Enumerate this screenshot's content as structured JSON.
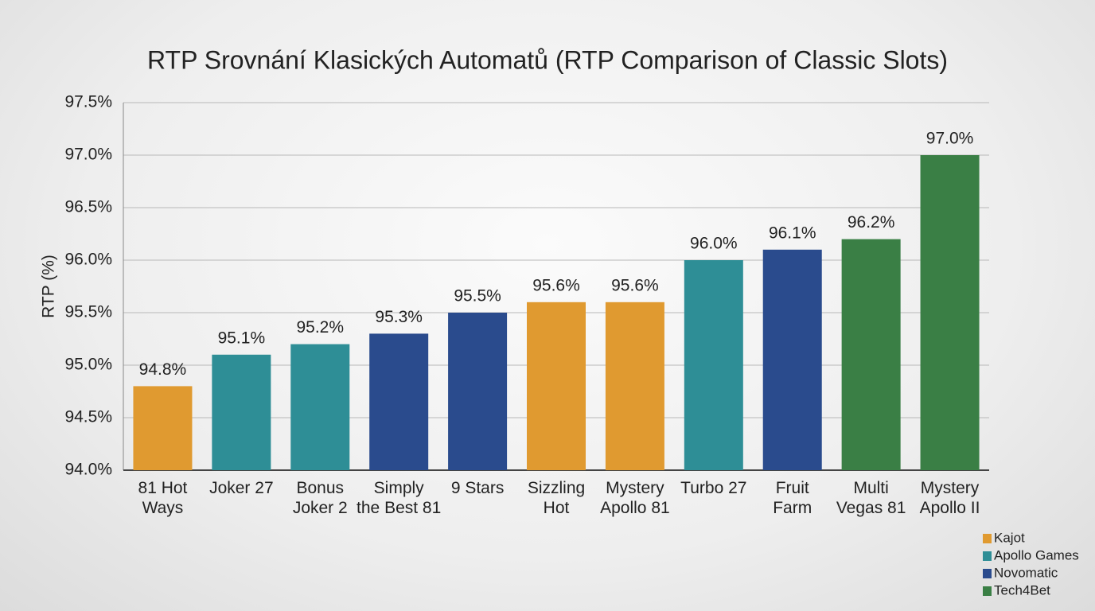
{
  "chart_data": {
    "type": "bar",
    "title": "RTP Srovnání Klasických Automatů (RTP Comparison of Classic Slots)",
    "y_label": "RTP (%)",
    "categories": [
      "81 Hot\nWays",
      "Joker 27",
      "Bonus\nJoker 2",
      "Simply\nthe Best 81",
      "9 Stars",
      "Sizzling\nHot",
      "Mystery\nApollo 81",
      "Turbo 27",
      "Fruit\nFarm",
      "Multi\nVegas 81",
      "Mystery\nApollo II"
    ],
    "series": [
      {
        "name": "Kajot",
        "color": "#e09a30",
        "values": [
          94.8,
          null,
          null,
          null,
          null,
          95.6,
          95.6,
          null,
          null,
          null,
          null
        ],
        "value_labels": [
          "94.8%",
          null,
          null,
          null,
          null,
          "95.6%",
          "95.6%",
          null,
          null,
          null,
          null
        ]
      },
      {
        "name": "Apollo Games",
        "color": "#2e8e96",
        "values": [
          null,
          95.1,
          95.2,
          null,
          null,
          null,
          null,
          96.0,
          null,
          null,
          null
        ],
        "value_labels": [
          null,
          "95.1%",
          "95.2%",
          null,
          null,
          null,
          null,
          "96.0%",
          null,
          null,
          null
        ]
      },
      {
        "name": "Novomatic",
        "color": "#2a4b8d",
        "values": [
          null,
          null,
          null,
          95.3,
          95.5,
          null,
          null,
          null,
          96.1,
          null,
          null
        ],
        "value_labels": [
          null,
          null,
          null,
          "95.3%",
          "95.5%",
          null,
          null,
          null,
          "96.1%",
          null,
          null
        ]
      },
      {
        "name": "Tech4Bet",
        "color": "#3a7f45",
        "values": [
          null,
          null,
          null,
          null,
          null,
          null,
          null,
          null,
          null,
          96.2,
          97.0
        ],
        "value_labels": [
          null,
          null,
          null,
          null,
          null,
          null,
          null,
          null,
          null,
          "96.2%",
          "97.0%"
        ]
      }
    ],
    "ylim": [
      94,
      97.5
    ],
    "yticks": [
      {
        "value": 94,
        "label": "94.0%"
      },
      {
        "value": 94.5,
        "label": "94.5%"
      },
      {
        "value": 95,
        "label": "95.0%"
      },
      {
        "value": 95.5,
        "label": "95.5%"
      },
      {
        "value": 96,
        "label": "96.0%"
      },
      {
        "value": 96.5,
        "label": "96.5%"
      },
      {
        "value": 97,
        "label": "97.0%"
      },
      {
        "value": 97.5,
        "label": "97.5%"
      }
    ],
    "grid": true,
    "legend": "bottom-right"
  }
}
